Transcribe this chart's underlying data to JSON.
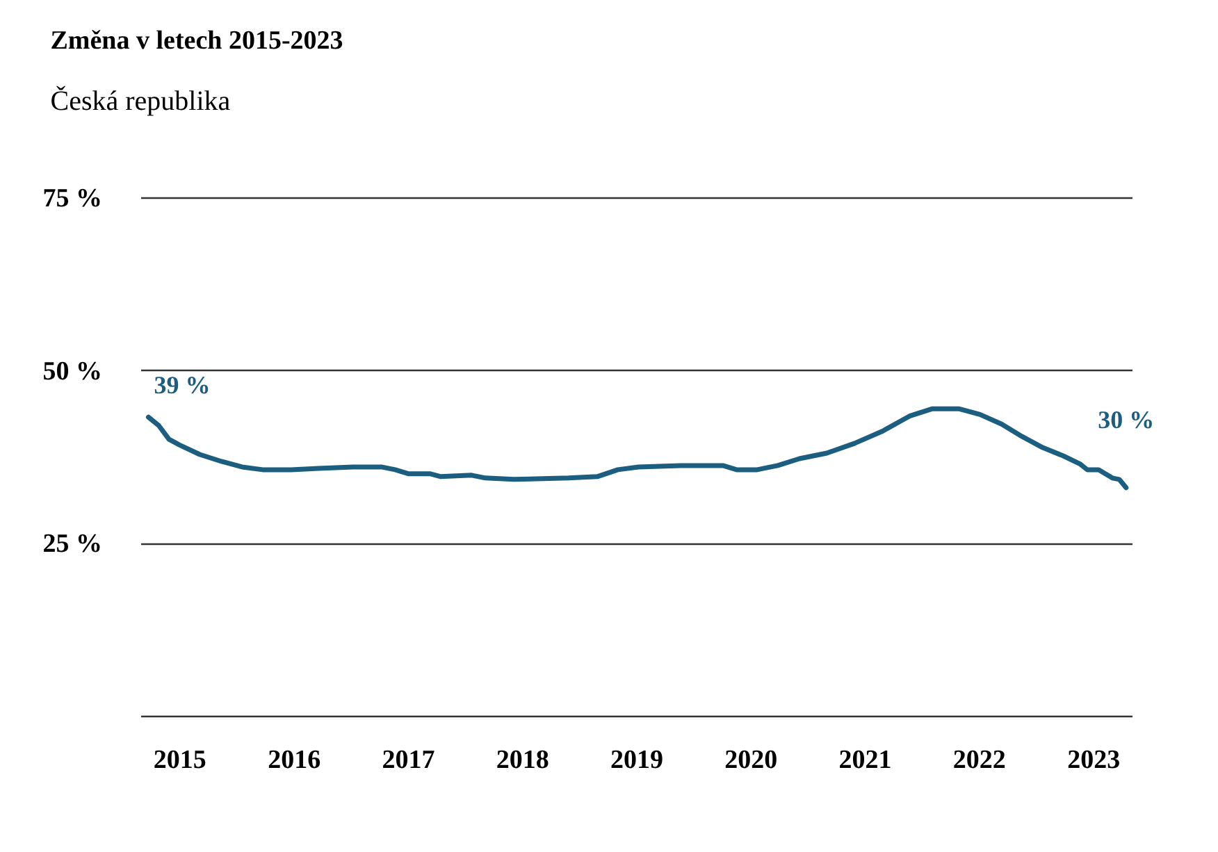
{
  "chart_data": {
    "type": "line",
    "title": "Změna v letech 2015-2023",
    "subtitle": "Česká republika",
    "x": [
      2014.73,
      2014.82,
      2014.91,
      2015.0,
      2015.18,
      2015.37,
      2015.55,
      2015.73,
      2015.98,
      2016.22,
      2016.52,
      2016.77,
      2016.89,
      2017.01,
      2017.2,
      2017.29,
      2017.56,
      2017.68,
      2017.93,
      2018.41,
      2018.66,
      2018.84,
      2019.02,
      2019.39,
      2019.76,
      2019.88,
      2020.06,
      2020.24,
      2020.43,
      2020.67,
      2020.91,
      2021.16,
      2021.4,
      2021.59,
      2021.83,
      2022.01,
      2022.2,
      2022.38,
      2022.56,
      2022.74,
      2022.89,
      2022.95,
      2023.05,
      2023.17,
      2023.23,
      2023.29
    ],
    "series": [
      {
        "color": "#1b5e80",
        "values": [
          43.2,
          42,
          40,
          39.2,
          37.8,
          36.8,
          36,
          35.6,
          35.6,
          35.8,
          36,
          36,
          35.6,
          35,
          35,
          34.6,
          34.8,
          34.4,
          34.2,
          34.4,
          34.6,
          35.6,
          36,
          36.2,
          36.2,
          35.6,
          35.6,
          36.2,
          37.2,
          38,
          39.4,
          41.2,
          43.4,
          44.4,
          44.4,
          43.6,
          42.2,
          40.4,
          38.8,
          37.6,
          36.4,
          35.6,
          35.6,
          34.4,
          34.2,
          33
        ]
      }
    ],
    "annotations": [
      "39 %",
      "30 %"
    ],
    "xlim": [
      2014.66,
      2023.34
    ],
    "xticks": [
      2015,
      2016,
      2017,
      2018,
      2019,
      2020,
      2021,
      2022,
      2023
    ],
    "ylim": [
      0,
      75
    ],
    "yticks": [
      {
        "value": 0,
        "label": null
      },
      {
        "value": 25,
        "label": "25 %"
      },
      {
        "value": 50,
        "label": "50 %"
      },
      {
        "value": 75,
        "label": "75 %"
      }
    ],
    "grid": "y",
    "marker": "none",
    "line_style": "solid"
  }
}
